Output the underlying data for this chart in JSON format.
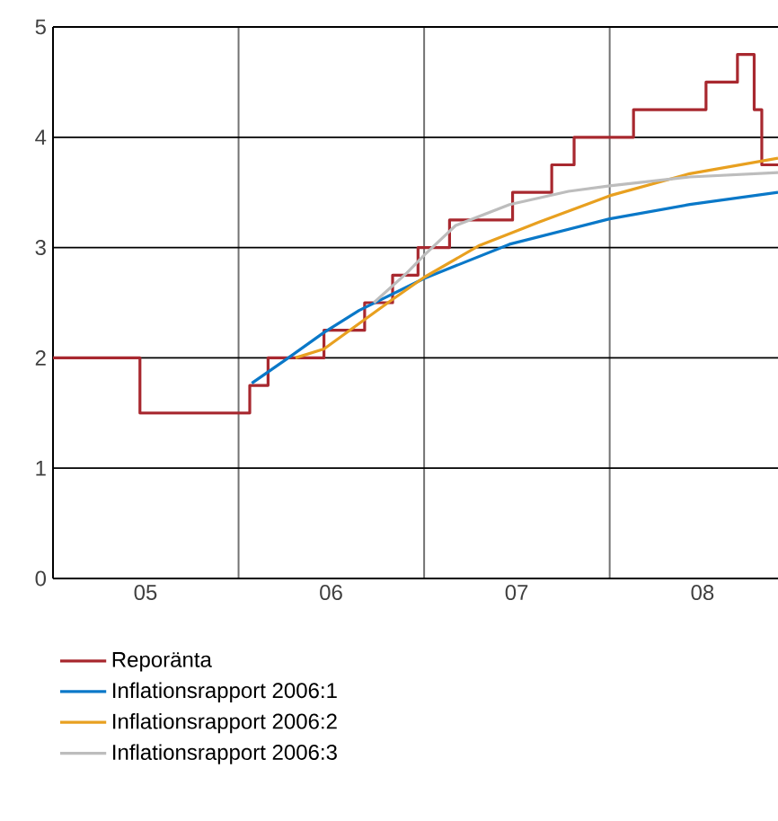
{
  "chart_data": {
    "type": "line",
    "xlim": [
      "2005-01-01",
      "2008-11-28"
    ],
    "ylim": [
      0,
      5
    ],
    "xticks": [
      {
        "value": "2005-07-02",
        "label": "05"
      },
      {
        "value": "2006-01-01",
        "label": null
      },
      {
        "value": "2006-07-02",
        "label": "06"
      },
      {
        "value": "2007-01-01",
        "label": null
      },
      {
        "value": "2007-07-02",
        "label": "07"
      },
      {
        "value": "2008-01-01",
        "label": null
      },
      {
        "value": "2008-07-02",
        "label": "08"
      }
    ],
    "yticks": [
      0,
      1,
      2,
      3,
      4,
      5
    ],
    "grid": true,
    "legend": "bottom",
    "marker": "none",
    "line_style": "solid",
    "series": [
      {
        "name": "Reporänta",
        "type": "step",
        "color": "#a8282f",
        "x": [
          "2005-01-01",
          "2005-06-21",
          "2006-01-23",
          "2006-02-28",
          "2006-06-18",
          "2006-09-06",
          "2006-10-31",
          "2006-12-20",
          "2007-02-20",
          "2007-06-24",
          "2007-09-09",
          "2007-10-23",
          "2008-02-17",
          "2008-07-09",
          "2008-09-09",
          "2008-10-12",
          "2008-10-27",
          "2008-11-28"
        ],
        "values": [
          2,
          1.5,
          1.75,
          2,
          2.25,
          2.5,
          2.75,
          3,
          3.25,
          3.5,
          3.75,
          4,
          4.25,
          4.5,
          4.75,
          4.25,
          3.75,
          3.75
        ]
      },
      {
        "name": "Inflationsrapport 2006:1",
        "color": "#0a78c8",
        "x": [
          "2006-01-27",
          "2006-04-09",
          "2006-06-18",
          "2006-08-26",
          "2007-01-01",
          "2007-06-18",
          "2008-01-01",
          "2008-06-07",
          "2008-11-28"
        ],
        "values": [
          1.77,
          2.0,
          2.23,
          2.43,
          2.72,
          3.03,
          3.26,
          3.39,
          3.5
        ]
      },
      {
        "name": "Inflationsrapport 2006:2",
        "color": "#e8a020",
        "x": [
          "2006-04-23",
          "2006-06-18",
          "2006-08-26",
          "2006-10-31",
          "2007-01-01",
          "2007-04-20",
          "2007-08-15",
          "2008-01-01",
          "2008-06-07",
          "2008-11-28"
        ],
        "values": [
          2.0,
          2.08,
          2.31,
          2.53,
          2.73,
          3.02,
          3.23,
          3.47,
          3.67,
          3.81
        ]
      },
      {
        "name": "Inflationsrapport 2006:3",
        "color": "#bdbdbd",
        "x": [
          "2006-09-24",
          "2006-11-28",
          "2007-01-01",
          "2007-03-04",
          "2007-06-18",
          "2007-10-12",
          "2008-01-01",
          "2008-06-07",
          "2008-11-28"
        ],
        "values": [
          2.5,
          2.77,
          2.93,
          3.2,
          3.39,
          3.51,
          3.56,
          3.64,
          3.68
        ]
      }
    ]
  }
}
